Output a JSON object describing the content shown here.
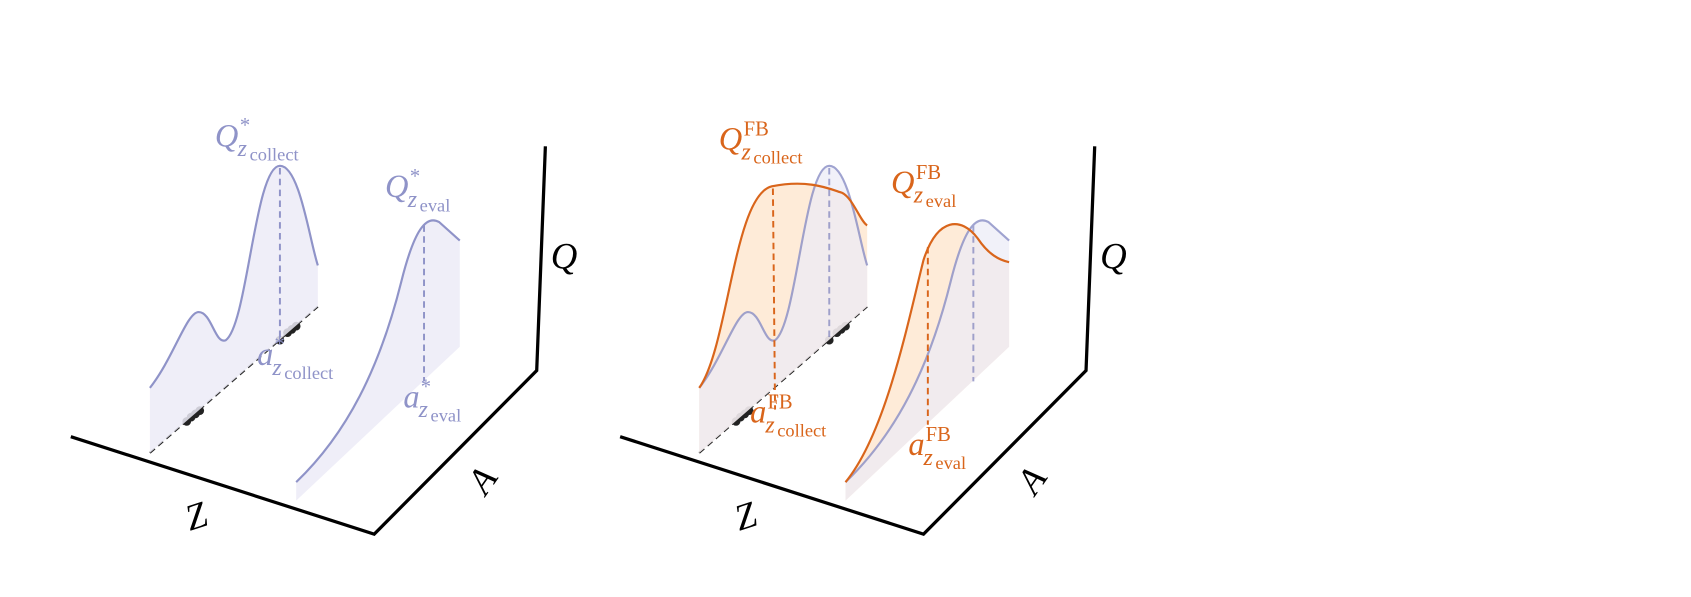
{
  "left": {
    "q_collect": {
      "symbol": "Q",
      "sup": "*",
      "sub": "z",
      "subsub": "collect"
    },
    "q_eval": {
      "symbol": "Q",
      "sup": "*",
      "sub": "z",
      "subsub": "eval"
    },
    "a_collect": {
      "symbol": "a",
      "sup": "*",
      "sub": "z",
      "subsub": "collect"
    },
    "a_eval": {
      "symbol": "a",
      "sup": "*",
      "sub": "z",
      "subsub": "eval"
    },
    "axes": {
      "z": "Z",
      "a": "A",
      "q": "Q"
    }
  },
  "right": {
    "q_collect": {
      "symbol": "Q",
      "sup": "FB",
      "sub": "z",
      "subsub": "collect"
    },
    "q_eval": {
      "symbol": "Q",
      "sup": "FB",
      "sub": "z",
      "subsub": "eval"
    },
    "a_collect": {
      "symbol": "a",
      "sup": "FB",
      "sub": "z",
      "subsub": "collect"
    },
    "a_eval": {
      "symbol": "a",
      "sup": "FB",
      "sub": "z",
      "subsub": "eval"
    },
    "axes": {
      "z": "Z",
      "a": "A",
      "q": "Q"
    }
  }
}
